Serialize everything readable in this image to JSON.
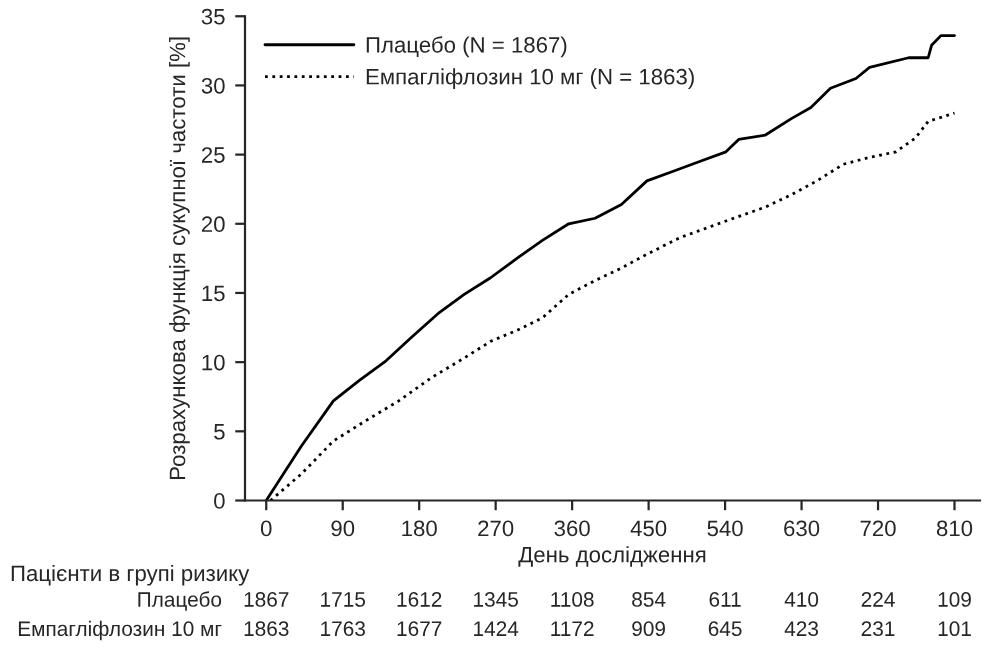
{
  "chart_data": {
    "type": "line",
    "xlabel": "День дослідження",
    "ylabel": "Розрахункова функція сукупної частоти [%]",
    "xlim": [
      -25,
      840
    ],
    "xticks": [
      0,
      90,
      180,
      270,
      360,
      450,
      540,
      630,
      720,
      810
    ],
    "ylim": [
      0,
      35
    ],
    "yticks": [
      0,
      5,
      10,
      15,
      20,
      25,
      30,
      35
    ],
    "grid": false,
    "legend": "top left",
    "series": [
      {
        "name": "Плацебо (N = 1867)",
        "color": "#000000",
        "line_style": "solid",
        "x": [
          0,
          41,
          79,
          110,
          141,
          171,
          202,
          233,
          264,
          295,
          325,
          356,
          387,
          418,
          448,
          479,
          510,
          541,
          556,
          587,
          618,
          641,
          664,
          694,
          710,
          756,
          779,
          783,
          794,
          810
        ],
        "values": [
          0,
          3.9,
          7.2,
          8.7,
          10.1,
          11.8,
          13.5,
          14.9,
          16.1,
          17.5,
          18.8,
          20.0,
          20.4,
          21.4,
          23.1,
          23.8,
          24.5,
          25.2,
          26.1,
          26.4,
          27.6,
          28.4,
          29.8,
          30.5,
          31.3,
          32.0,
          32.0,
          32.9,
          33.6,
          33.6
        ]
      },
      {
        "name": "Емпагліфлозин 10 мг (N = 1863)",
        "color": "#000000",
        "line_style": "dotted",
        "x": [
          5,
          41,
          79,
          118,
          156,
          195,
          233,
          264,
          295,
          325,
          356,
          387,
          418,
          448,
          487,
          541,
          587,
          618,
          648,
          679,
          710,
          741,
          764,
          779,
          810
        ],
        "values": [
          0,
          1.9,
          4.3,
          5.8,
          7.2,
          8.9,
          10.3,
          11.5,
          12.3,
          13.2,
          14.9,
          15.9,
          16.8,
          17.8,
          19.0,
          20.2,
          21.2,
          22.1,
          23.1,
          24.3,
          24.8,
          25.2,
          26.2,
          27.4,
          28.0
        ]
      }
    ],
    "annotations": [
      "Пацієнти в групі ризику",
      "Плацебо",
      "1867",
      "1715",
      "1612",
      "1345",
      "1108",
      "854",
      "611",
      "410",
      "224",
      "109",
      "Емпагліфлозин 10 мг",
      "1863",
      "1763",
      "1677",
      "1424",
      "1172",
      "909",
      "645",
      "423",
      "231",
      "101"
    ]
  }
}
